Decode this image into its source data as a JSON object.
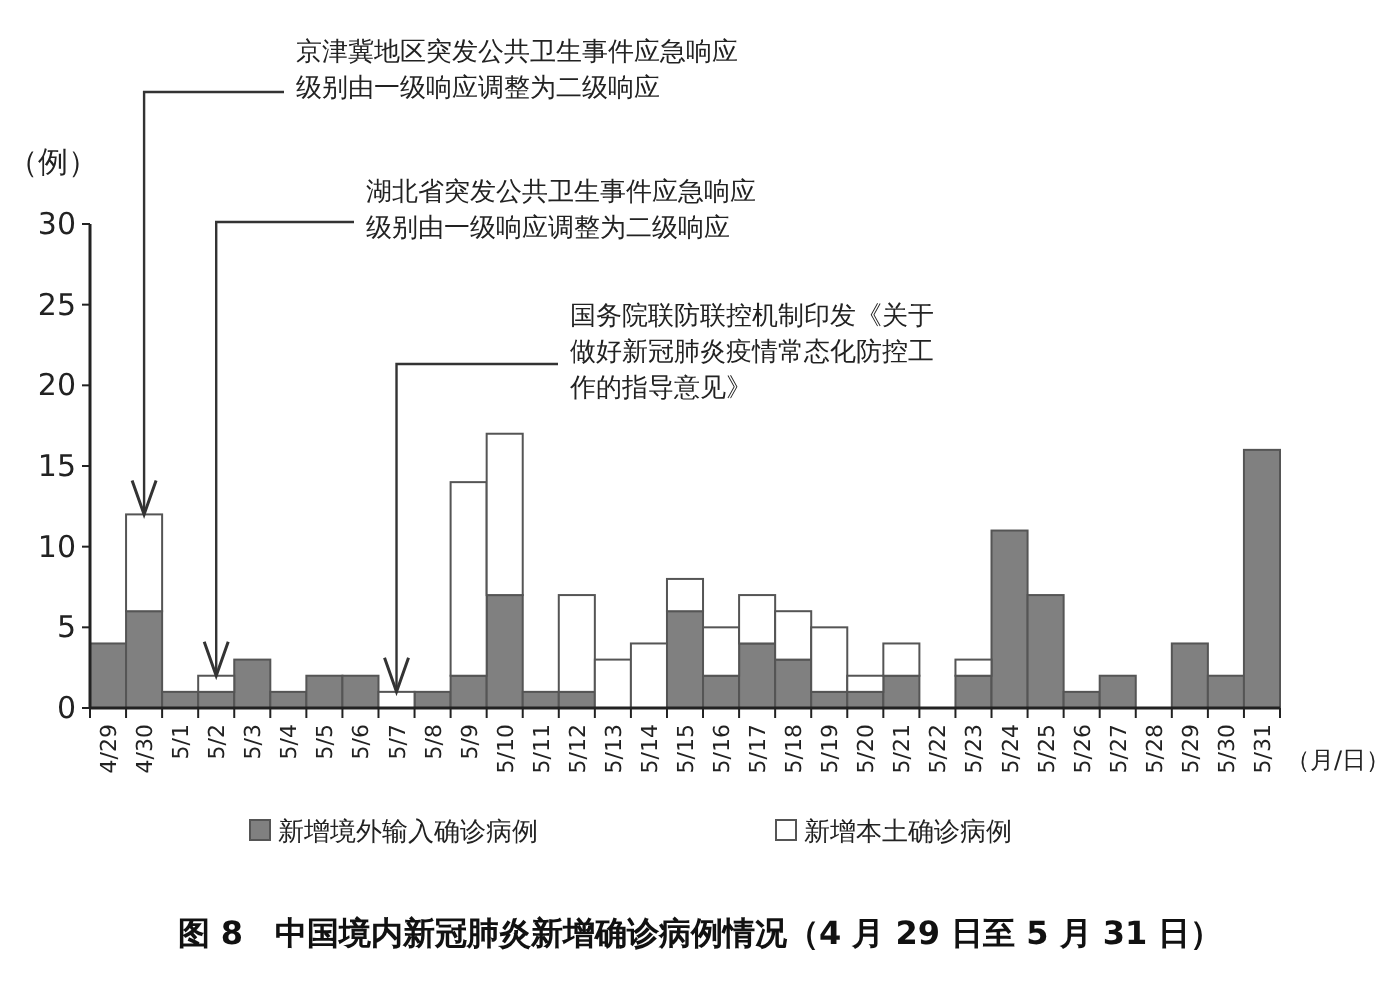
{
  "chart_data": {
    "type": "bar",
    "stacked": true,
    "title": "图 8　中国境内新冠肺炎新增确诊病例情况（4 月 29 日至 5 月 31 日）",
    "ylabel": "（例）",
    "xlabel": "（月/日）",
    "categories": [
      "4/29",
      "4/30",
      "5/1",
      "5/2",
      "5/3",
      "5/4",
      "5/5",
      "5/6",
      "5/7",
      "5/8",
      "5/9",
      "5/10",
      "5/11",
      "5/12",
      "5/13",
      "5/14",
      "5/15",
      "5/16",
      "5/17",
      "5/18",
      "5/19",
      "5/20",
      "5/21",
      "5/22",
      "5/23",
      "5/24",
      "5/25",
      "5/26",
      "5/27",
      "5/28",
      "5/29",
      "5/30",
      "5/31"
    ],
    "series": [
      {
        "name": "新增境外输入确诊病例",
        "color": "#808080",
        "values": [
          4,
          6,
          1,
          1,
          3,
          1,
          2,
          2,
          0,
          1,
          2,
          7,
          1,
          1,
          0,
          0,
          6,
          2,
          4,
          3,
          1,
          1,
          2,
          0,
          2,
          11,
          7,
          1,
          2,
          0,
          4,
          2,
          16
        ]
      },
      {
        "name": "新增本土确诊病例",
        "color": "#ffffff",
        "values": [
          0,
          6,
          0,
          1,
          0,
          0,
          0,
          0,
          1,
          0,
          12,
          10,
          0,
          6,
          3,
          4,
          2,
          3,
          3,
          3,
          4,
          1,
          2,
          0,
          1,
          0,
          0,
          0,
          0,
          0,
          0,
          0,
          0
        ]
      }
    ],
    "ylim": [
      0,
      30
    ],
    "yticks": [
      0,
      5,
      10,
      15,
      20,
      25,
      30
    ],
    "grid": false,
    "legend": "bottom",
    "annotations": [
      {
        "text": "京津冀地区突发公共卫生事件应急响应级别由一级响应调整为二级响应",
        "x": "4/30",
        "y": 12
      },
      {
        "text": "湖北省突发公共卫生事件应急响应级别由一级响应调整为二级响应",
        "x": "5/2",
        "y": 2
      },
      {
        "text": "国务院联防联控机制印发《关于做好新冠肺炎疫情常态化防控工作的指导意见》",
        "x": "5/7",
        "y": 1
      }
    ]
  }
}
